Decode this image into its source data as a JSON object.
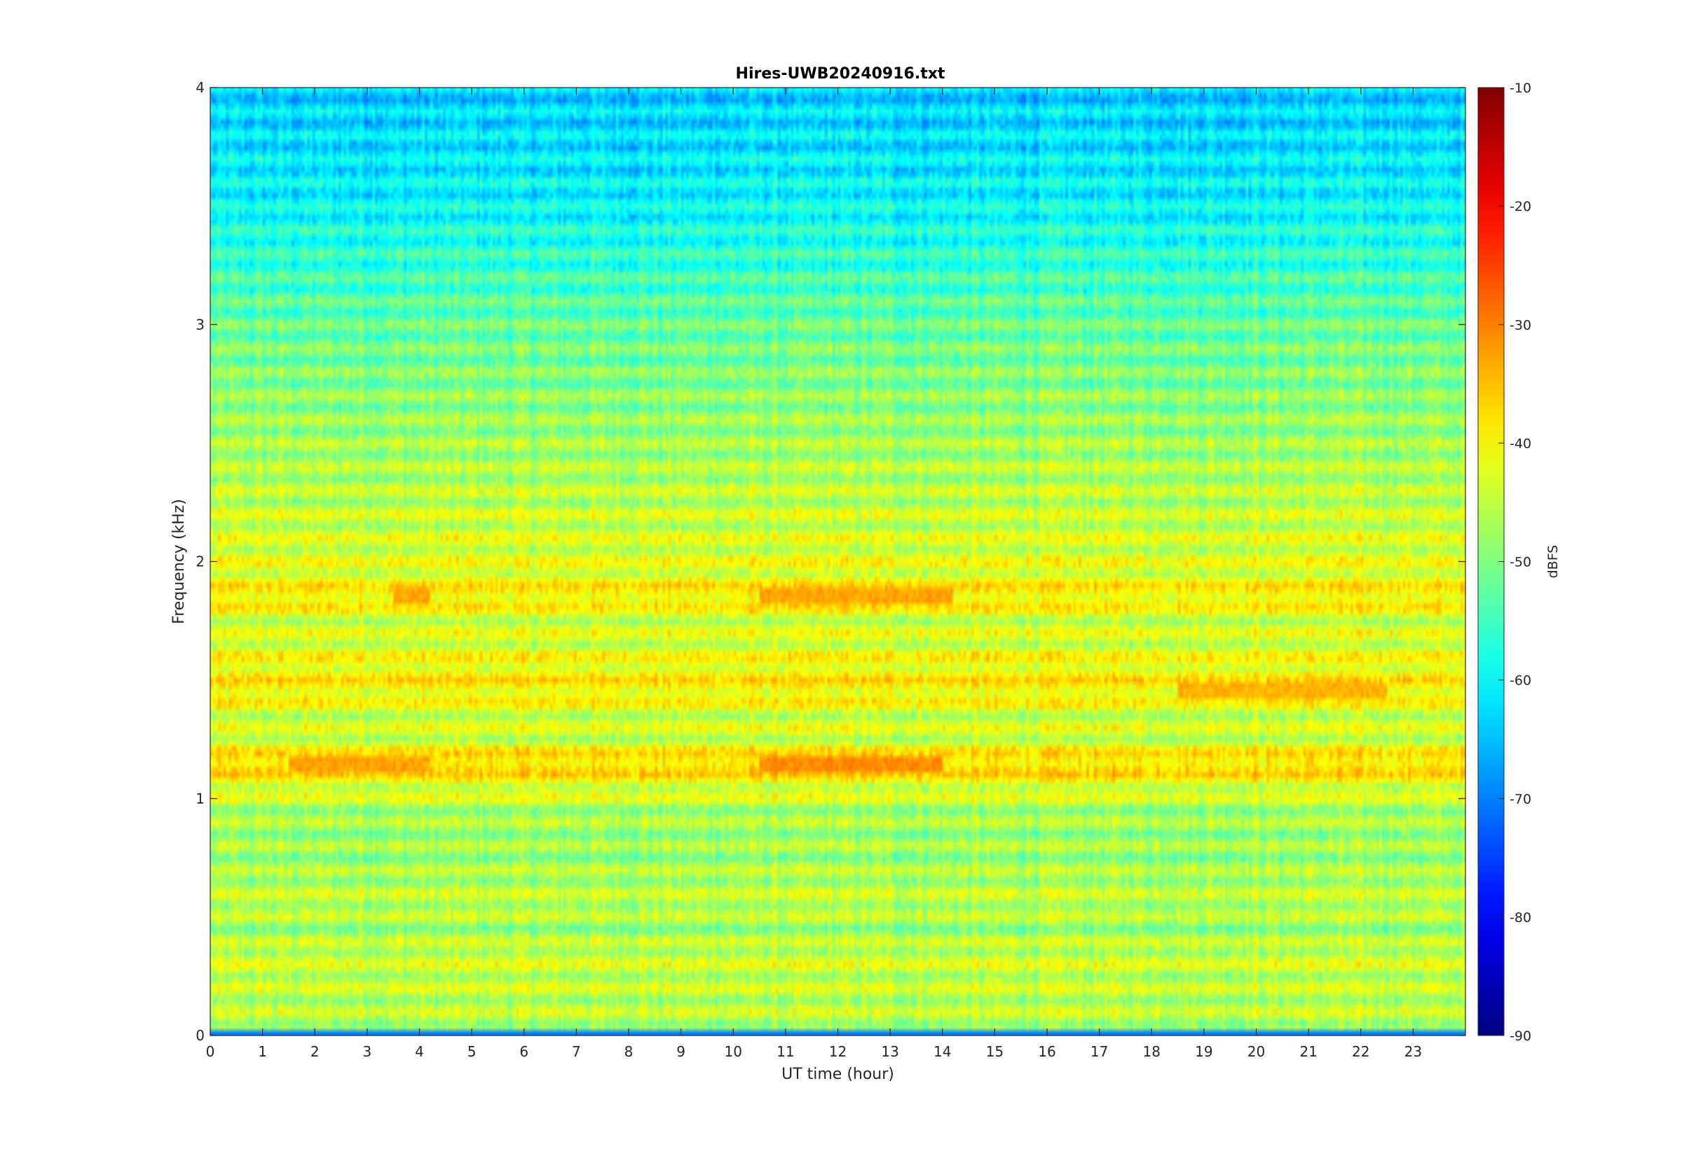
{
  "chart_data": {
    "type": "heatmap",
    "title": "Hires-UWB20240916.txt",
    "xlabel": "UT time (hour)",
    "ylabel": "Frequency (kHz)",
    "xlim": [
      0,
      24
    ],
    "ylim": [
      0,
      4
    ],
    "x_ticks": [
      0,
      1,
      2,
      3,
      4,
      5,
      6,
      7,
      8,
      9,
      10,
      11,
      12,
      13,
      14,
      15,
      16,
      17,
      18,
      19,
      20,
      21,
      22,
      23
    ],
    "y_ticks": [
      0,
      1,
      2,
      3,
      4
    ],
    "colorbar": {
      "label": "dBFS",
      "clim": [
        -90,
        -10
      ],
      "ticks": [
        -90,
        -80,
        -70,
        -60,
        -50,
        -40,
        -30,
        -20,
        -10
      ],
      "colormap": "jet"
    },
    "grid": false,
    "band_levels_dBFS": [
      {
        "freq_khz": 0.05,
        "level": -46
      },
      {
        "freq_khz": 0.35,
        "level": -44
      },
      {
        "freq_khz": 0.45,
        "level": -48
      },
      {
        "freq_khz": 0.55,
        "level": -45
      },
      {
        "freq_khz": 0.65,
        "level": -46
      },
      {
        "freq_khz": 0.75,
        "level": -48
      },
      {
        "freq_khz": 0.95,
        "level": -47
      },
      {
        "freq_khz": 1.05,
        "level": -42
      },
      {
        "freq_khz": 1.15,
        "level": -36
      },
      {
        "freq_khz": 1.25,
        "level": -44
      },
      {
        "freq_khz": 1.35,
        "level": -44
      },
      {
        "freq_khz": 1.45,
        "level": -39
      },
      {
        "freq_khz": 1.55,
        "level": -40
      },
      {
        "freq_khz": 1.65,
        "level": -43
      },
      {
        "freq_khz": 1.75,
        "level": -44
      },
      {
        "freq_khz": 1.85,
        "level": -38
      },
      {
        "freq_khz": 1.95,
        "level": -42
      },
      {
        "freq_khz": 2.45,
        "level": -47
      },
      {
        "freq_khz": 3.0,
        "level": -52
      },
      {
        "freq_khz": 3.5,
        "level": -60
      },
      {
        "freq_khz": 4.0,
        "level": -64
      }
    ],
    "hotspots": [
      {
        "freq_khz": 1.15,
        "hours": [
          1.5,
          4.2
        ],
        "level": -33
      },
      {
        "freq_khz": 1.15,
        "hours": [
          10.5,
          14.0
        ],
        "level": -31
      },
      {
        "freq_khz": 1.85,
        "hours": [
          3.5,
          4.2
        ],
        "level": -33
      },
      {
        "freq_khz": 1.85,
        "hours": [
          10.5,
          14.2
        ],
        "level": -33
      },
      {
        "freq_khz": 1.45,
        "hours": [
          18.5,
          22.5
        ],
        "level": -34
      }
    ]
  }
}
